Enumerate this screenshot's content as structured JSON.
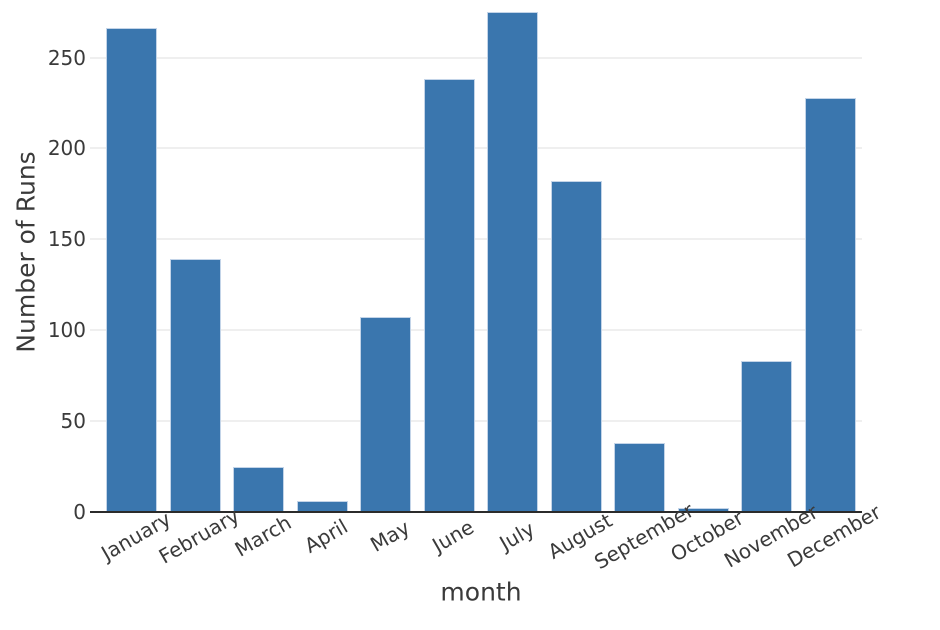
{
  "chart_data": {
    "type": "bar",
    "title": "",
    "xlabel": "month",
    "ylabel": "Number of Runs",
    "categories": [
      "January",
      "February",
      "March",
      "April",
      "May",
      "June",
      "July",
      "August",
      "September",
      "October",
      "November",
      "December"
    ],
    "values": [
      266,
      139,
      25,
      6,
      107,
      238,
      275,
      182,
      38,
      2,
      83,
      228
    ],
    "y_ticks": [
      0,
      50,
      100,
      150,
      200,
      250
    ],
    "ylim": [
      0,
      280
    ],
    "grid": "horizontal-only",
    "legend_position": "none",
    "x_tick_rotation_deg": -30,
    "colors": {
      "bar_fill": "#3a76ae",
      "bar_edge": "#c3d4e8",
      "gridline": "#efefef",
      "axis_line": "#2b2b2b",
      "text": "#3a3a3a",
      "background": "#ffffff"
    }
  }
}
